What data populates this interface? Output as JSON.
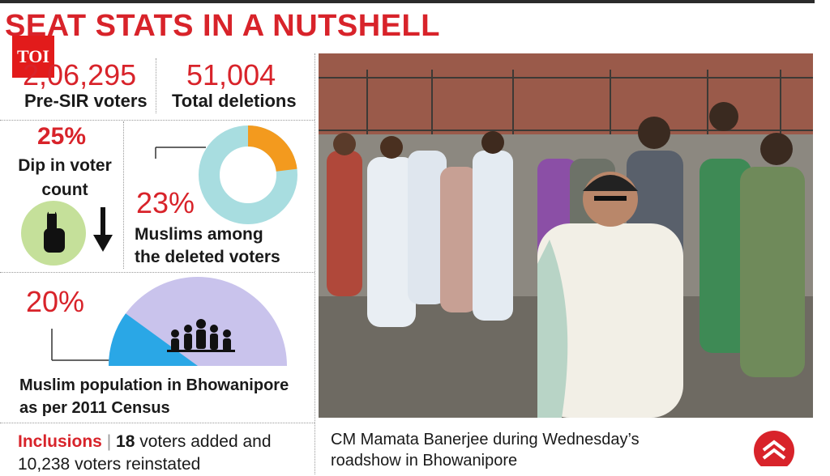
{
  "headline": "SEAT STATS IN A NUTSHELL",
  "badge": "TOI",
  "stats": {
    "pre_sir_value": "2,06,295",
    "pre_sir_label": "Pre-SIR voters",
    "deletions_value": "51,004",
    "deletions_label": "Total deletions",
    "dip_value": "25%",
    "dip_label": "Dip in voter count",
    "muslim_deleted_value": "23%",
    "muslim_deleted_label_1": "Muslims among",
    "muslim_deleted_label_2": "the deleted voters",
    "muslim_pop_value": "20%",
    "muslim_pop_label_1": "Muslim population in Bhowanipore",
    "muslim_pop_label_2": "as per 2011 Census"
  },
  "inclusions": {
    "keyword": "Inclusions",
    "separator": "|",
    "count_added": "18",
    "text_added": "voters added and",
    "line2": "10,238 voters reinstated"
  },
  "photo_caption_1": "CM Mamata Banerjee during Wednesday’s",
  "photo_caption_2": "roadshow in Bhowanipore",
  "icons": [
    "voting-finger-icon",
    "down-arrow-icon",
    "people-group-icon",
    "publisher-logo-icon"
  ],
  "colors": {
    "accent_red": "#d8232a",
    "donut_orange": "#f39a1e",
    "donut_teal": "#a8dde0",
    "gauge_blue": "#2aa7e6",
    "gauge_lavender": "#c9c3ec",
    "finger_green": "#c5e09a"
  },
  "donut_share": 0.23,
  "gauge_share": 0.2
}
